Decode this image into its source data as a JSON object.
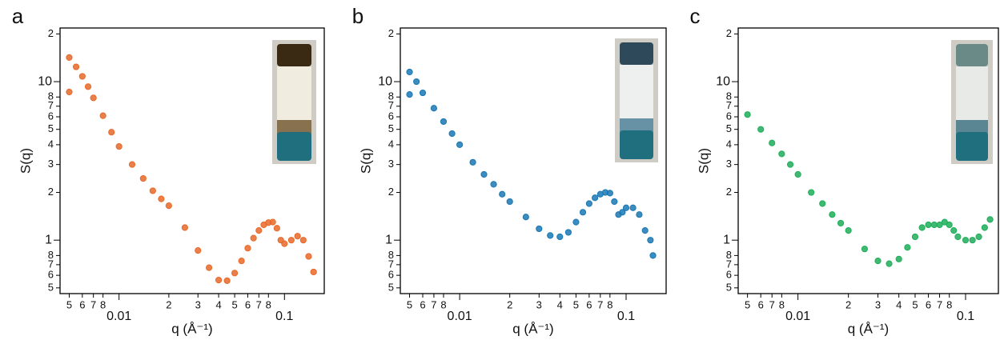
{
  "chart_data": [
    {
      "type": "scatter",
      "panel_label": "a",
      "y_label": "S(q)",
      "x_label": "q (Å⁻¹)",
      "log_x": true,
      "log_y": true,
      "color": "#e8692a",
      "xlim": [
        0.0044,
        0.174
      ],
      "ylim": [
        0.46,
        21.8
      ],
      "xticks": [
        {
          "value": 0.005,
          "label": "5"
        },
        {
          "value": 0.006,
          "label": "6"
        },
        {
          "value": 0.007,
          "label": "7"
        },
        {
          "value": 0.008,
          "label": "8"
        },
        0.01,
        {
          "value": 0.02,
          "label": "2"
        },
        {
          "value": 0.03,
          "label": "3"
        },
        {
          "value": 0.04,
          "label": "4"
        },
        {
          "value": 0.05,
          "label": "5"
        },
        {
          "value": 0.06,
          "label": "6"
        },
        {
          "value": 0.07,
          "label": "7"
        },
        {
          "value": 0.08,
          "label": "8"
        },
        0.1
      ],
      "yticks": [
        {
          "value": 0.5,
          "label": "5"
        },
        {
          "value": 0.6,
          "label": "6"
        },
        {
          "value": 0.7,
          "label": "7"
        },
        {
          "value": 0.8,
          "label": "8"
        },
        1,
        2,
        3,
        4,
        5,
        6,
        7,
        8,
        10,
        {
          "value": 20,
          "label": "2"
        }
      ],
      "x": [
        0.005,
        0.0055,
        0.006,
        0.0065,
        0.007,
        0.008,
        0.009,
        0.01,
        0.012,
        0.014,
        0.016,
        0.018,
        0.02,
        0.025,
        0.03,
        0.035,
        0.04,
        0.045,
        0.05,
        0.055,
        0.06,
        0.065,
        0.07,
        0.075,
        0.08,
        0.085,
        0.09,
        0.095,
        0.1,
        0.11,
        0.12,
        0.13,
        0.14,
        0.15,
        0.005
      ],
      "values": [
        14.2,
        12.4,
        10.8,
        9.3,
        7.9,
        6.1,
        4.8,
        3.9,
        3.0,
        2.45,
        2.05,
        1.82,
        1.65,
        1.2,
        0.86,
        0.67,
        0.56,
        0.555,
        0.62,
        0.74,
        0.89,
        1.03,
        1.15,
        1.25,
        1.29,
        1.3,
        1.19,
        1.0,
        0.95,
        1.0,
        1.06,
        1.0,
        0.79,
        0.63,
        8.6
      ]
    },
    {
      "type": "scatter",
      "panel_label": "b",
      "y_label": "S(q)",
      "x_label": "q (Å⁻¹)",
      "log_x": true,
      "log_y": true,
      "color": "#1a78b4",
      "xlim": [
        0.0044,
        0.174
      ],
      "ylim": [
        0.46,
        21.8
      ],
      "xticks": [
        {
          "value": 0.005,
          "label": "5"
        },
        {
          "value": 0.006,
          "label": "6"
        },
        {
          "value": 0.007,
          "label": "7"
        },
        {
          "value": 0.008,
          "label": "8"
        },
        0.01,
        {
          "value": 0.02,
          "label": "2"
        },
        {
          "value": 0.03,
          "label": "3"
        },
        {
          "value": 0.04,
          "label": "4"
        },
        {
          "value": 0.05,
          "label": "5"
        },
        {
          "value": 0.06,
          "label": "6"
        },
        {
          "value": 0.07,
          "label": "7"
        },
        {
          "value": 0.08,
          "label": "8"
        },
        0.1
      ],
      "yticks": [
        {
          "value": 0.5,
          "label": "5"
        },
        {
          "value": 0.6,
          "label": "6"
        },
        {
          "value": 0.7,
          "label": "7"
        },
        {
          "value": 0.8,
          "label": "8"
        },
        1,
        2,
        3,
        4,
        5,
        6,
        7,
        8,
        10,
        {
          "value": 20,
          "label": "2"
        }
      ],
      "x": [
        0.005,
        0.0055,
        0.006,
        0.007,
        0.008,
        0.009,
        0.01,
        0.012,
        0.014,
        0.016,
        0.018,
        0.02,
        0.025,
        0.03,
        0.035,
        0.04,
        0.045,
        0.05,
        0.055,
        0.06,
        0.065,
        0.07,
        0.075,
        0.08,
        0.085,
        0.09,
        0.095,
        0.1,
        0.11,
        0.12,
        0.13,
        0.14,
        0.145,
        0.005
      ],
      "values": [
        11.5,
        10.0,
        8.5,
        6.8,
        5.6,
        4.7,
        4.0,
        3.1,
        2.6,
        2.25,
        1.95,
        1.75,
        1.4,
        1.18,
        1.07,
        1.05,
        1.12,
        1.3,
        1.5,
        1.7,
        1.85,
        1.95,
        2.0,
        1.98,
        1.75,
        1.45,
        1.5,
        1.6,
        1.6,
        1.45,
        1.15,
        1.0,
        0.8,
        8.3
      ]
    },
    {
      "type": "scatter",
      "panel_label": "c",
      "y_label": "S(q)",
      "x_label": "q (Å⁻¹)",
      "log_x": true,
      "log_y": true,
      "color": "#1fae5a",
      "xlim": [
        0.0044,
        0.157
      ],
      "ylim": [
        0.46,
        21.8
      ],
      "xticks": [
        {
          "value": 0.005,
          "label": "5"
        },
        {
          "value": 0.006,
          "label": "6"
        },
        {
          "value": 0.007,
          "label": "7"
        },
        {
          "value": 0.008,
          "label": "8"
        },
        0.01,
        {
          "value": 0.02,
          "label": "2"
        },
        {
          "value": 0.03,
          "label": "3"
        },
        {
          "value": 0.04,
          "label": "4"
        },
        {
          "value": 0.05,
          "label": "5"
        },
        {
          "value": 0.06,
          "label": "6"
        },
        {
          "value": 0.07,
          "label": "7"
        },
        {
          "value": 0.08,
          "label": "8"
        },
        0.1
      ],
      "yticks": [
        {
          "value": 0.5,
          "label": "5"
        },
        {
          "value": 0.6,
          "label": "6"
        },
        {
          "value": 0.7,
          "label": "7"
        },
        {
          "value": 0.8,
          "label": "8"
        },
        1,
        2,
        3,
        4,
        5,
        6,
        7,
        8,
        10,
        {
          "value": 20,
          "label": "2"
        }
      ],
      "x": [
        0.005,
        0.006,
        0.007,
        0.008,
        0.009,
        0.01,
        0.012,
        0.014,
        0.016,
        0.018,
        0.02,
        0.025,
        0.03,
        0.035,
        0.04,
        0.045,
        0.05,
        0.055,
        0.06,
        0.065,
        0.07,
        0.075,
        0.08,
        0.085,
        0.09,
        0.1,
        0.11,
        0.12,
        0.13,
        0.14
      ],
      "values": [
        6.2,
        5.0,
        4.1,
        3.5,
        3.0,
        2.6,
        2.0,
        1.7,
        1.45,
        1.28,
        1.15,
        0.88,
        0.74,
        0.71,
        0.76,
        0.9,
        1.05,
        1.2,
        1.25,
        1.25,
        1.25,
        1.3,
        1.25,
        1.15,
        1.05,
        1.0,
        1.0,
        1.05,
        1.2,
        1.35
      ]
    }
  ]
}
